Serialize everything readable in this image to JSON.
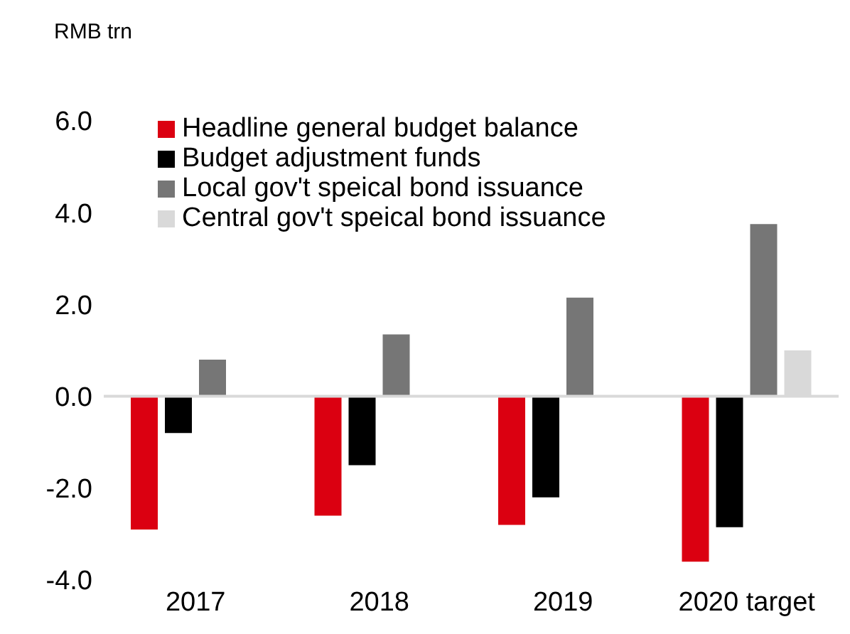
{
  "chart_data": {
    "type": "bar",
    "annotations": [
      "RMB trn"
    ],
    "categories": [
      "2017",
      "2018",
      "2019",
      "2020 target"
    ],
    "series": [
      {
        "name": "Headline general budget balance",
        "color": "#db0011",
        "values": [
          -2.9,
          -2.6,
          -2.8,
          -3.6
        ]
      },
      {
        "name": "Budget adjustment funds",
        "color": "#000000",
        "values": [
          -0.8,
          -1.5,
          -2.2,
          -2.85
        ]
      },
      {
        "name": "Local gov't speical bond issuance",
        "color": "#767676",
        "values": [
          0.8,
          1.35,
          2.15,
          3.75
        ]
      },
      {
        "name": "Central gov't speical bond issuance",
        "color": "#d9d9d9",
        "values": [
          null,
          null,
          null,
          1.0
        ]
      }
    ],
    "ylim": [
      -4,
      6
    ],
    "yticks": [
      {
        "value": -4,
        "label": "-4.0"
      },
      {
        "value": -2,
        "label": "-2.0"
      },
      {
        "value": 0,
        "label": "0.0"
      },
      {
        "value": 2,
        "label": "2.0"
      },
      {
        "value": 4,
        "label": "4.0"
      },
      {
        "value": 6,
        "label": "6.0"
      }
    ],
    "ref_lines": [
      {
        "axis": "y",
        "value": 0,
        "color": "#d9d9d9"
      }
    ],
    "grid": false,
    "legend": "top left"
  }
}
